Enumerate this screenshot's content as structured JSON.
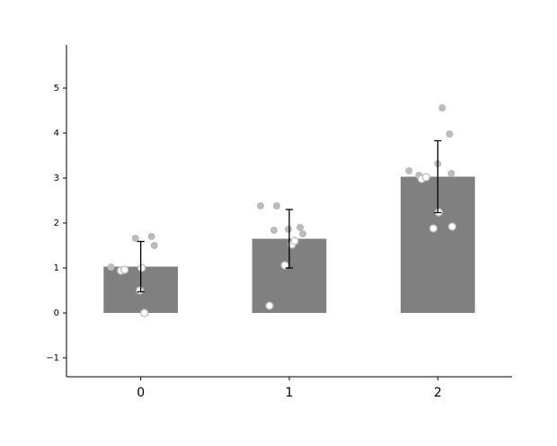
{
  "chart_data": {
    "type": "bar",
    "x": [
      0,
      1,
      2
    ],
    "values": [
      1.03,
      1.65,
      3.03
    ],
    "errors": [
      0.56,
      0.65,
      0.8
    ],
    "color": "#808080",
    "xlim": [
      -0.5,
      2.5
    ],
    "xticks": [
      0,
      1,
      2
    ],
    "ylim": [
      -1.42,
      5.96
    ],
    "yticks": [
      {
        "value": -1,
        "label": "−1"
      },
      0,
      1,
      2,
      3,
      4,
      5
    ],
    "points": [
      {
        "type": "scatter",
        "color": "#bbbbbb",
        "filled": true,
        "x": [
          -0.036,
          0.073,
          0.091,
          -0.2,
          0.806,
          0.915,
          0.897,
          0.994,
          1.073,
          1.091,
          1.806,
          1.873,
          2.03,
          2.079,
          2.0,
          2.091
        ],
        "y": [
          1.66,
          1.7,
          1.5,
          1.02,
          2.38,
          2.38,
          1.84,
          1.86,
          1.9,
          1.76,
          3.16,
          3.06,
          4.56,
          3.98,
          3.32,
          3.1
        ]
      },
      {
        "type": "scatter",
        "color": "#bbbbbb",
        "filled": false,
        "x": [
          -0.133,
          -0.109,
          0.006,
          -0.006,
          0.024,
          0.867,
          0.97,
          1.018,
          1.036,
          1.891,
          1.921,
          1.97,
          2.097,
          2.006
        ],
        "y": [
          0.94,
          0.96,
          1.0,
          0.5,
          0.0,
          0.16,
          1.06,
          1.52,
          1.6,
          2.98,
          3.02,
          1.88,
          1.92,
          2.24
        ]
      }
    ]
  }
}
